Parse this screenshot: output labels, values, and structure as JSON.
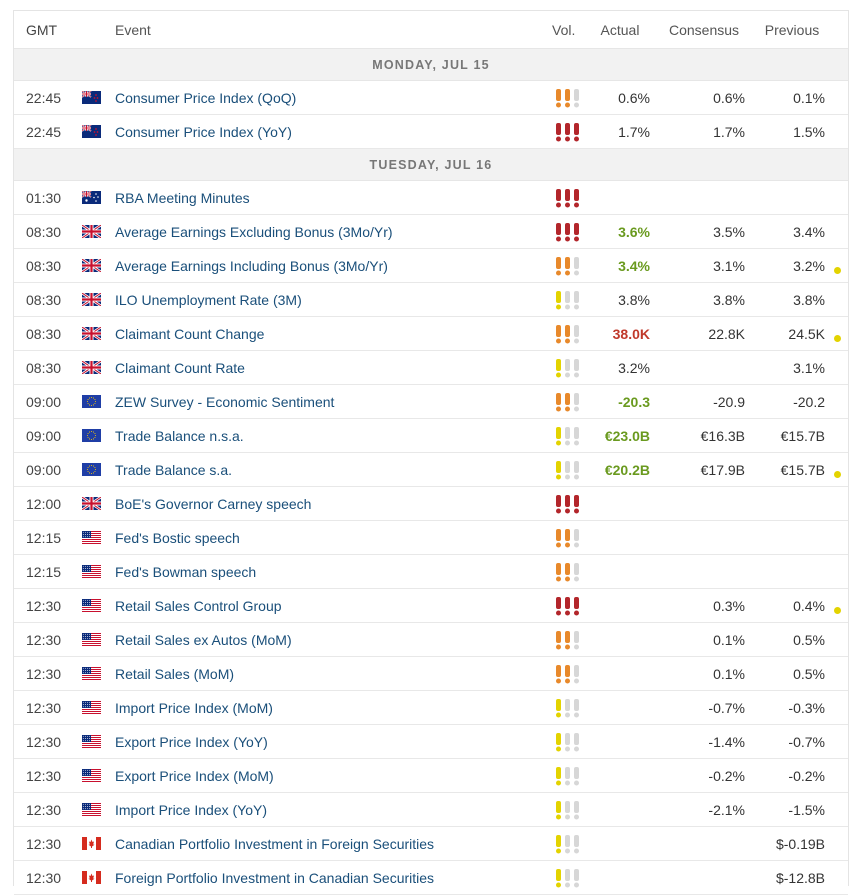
{
  "colors": {
    "link": "#1a4f7a",
    "positive": "#6a9a1f",
    "negative": "#c0392b",
    "vol_high": "#b3262b",
    "vol_medium": "#e8892b",
    "vol_low": "#e3d300",
    "vol_inactive": "#d7d7d7",
    "revision_dot": "#e3d300"
  },
  "header": {
    "gmt": "GMT",
    "event": "Event",
    "vol": "Vol.",
    "actual": "Actual",
    "consensus": "Consensus",
    "previous": "Previous"
  },
  "days": [
    "MONDAY, JUL 15",
    "TUESDAY, JUL 16"
  ],
  "rows": [
    {
      "kind": "day",
      "day_index": 0
    },
    {
      "kind": "event",
      "time": "22:45",
      "flag": "NZ",
      "event": "Consumer Price Index (QoQ)",
      "vol": "medium",
      "actual": "0.6%",
      "actual_style": "",
      "consensus": "0.6%",
      "previous": "0.1%",
      "revised": false
    },
    {
      "kind": "event",
      "time": "22:45",
      "flag": "NZ",
      "event": "Consumer Price Index (YoY)",
      "vol": "high",
      "actual": "1.7%",
      "actual_style": "",
      "consensus": "1.7%",
      "previous": "1.5%",
      "revised": false
    },
    {
      "kind": "day",
      "day_index": 1
    },
    {
      "kind": "event",
      "time": "01:30",
      "flag": "AU",
      "event": "RBA Meeting Minutes",
      "vol": "high",
      "actual": "",
      "actual_style": "",
      "consensus": "",
      "previous": "",
      "revised": false
    },
    {
      "kind": "event",
      "time": "08:30",
      "flag": "UK",
      "event": "Average Earnings Excluding Bonus (3Mo/Yr)",
      "vol": "high",
      "actual": "3.6%",
      "actual_style": "pos",
      "consensus": "3.5%",
      "previous": "3.4%",
      "revised": false
    },
    {
      "kind": "event",
      "time": "08:30",
      "flag": "UK",
      "event": "Average Earnings Including Bonus (3Mo/Yr)",
      "vol": "medium",
      "actual": "3.4%",
      "actual_style": "pos",
      "consensus": "3.1%",
      "previous": "3.2%",
      "revised": true
    },
    {
      "kind": "event",
      "time": "08:30",
      "flag": "UK",
      "event": "ILO Unemployment Rate (3M)",
      "vol": "low",
      "actual": "3.8%",
      "actual_style": "",
      "consensus": "3.8%",
      "previous": "3.8%",
      "revised": false
    },
    {
      "kind": "event",
      "time": "08:30",
      "flag": "UK",
      "event": "Claimant Count Change",
      "vol": "medium",
      "actual": "38.0K",
      "actual_style": "neg",
      "consensus": "22.8K",
      "previous": "24.5K",
      "revised": true
    },
    {
      "kind": "event",
      "time": "08:30",
      "flag": "UK",
      "event": "Claimant Count Rate",
      "vol": "low",
      "actual": "3.2%",
      "actual_style": "",
      "consensus": "",
      "previous": "3.1%",
      "revised": false
    },
    {
      "kind": "event",
      "time": "09:00",
      "flag": "EU",
      "event": "ZEW Survey - Economic Sentiment",
      "vol": "medium",
      "actual": "-20.3",
      "actual_style": "pos",
      "consensus": "-20.9",
      "previous": "-20.2",
      "revised": false
    },
    {
      "kind": "event",
      "time": "09:00",
      "flag": "EU",
      "event": "Trade Balance n.s.a.",
      "vol": "low",
      "actual": "€23.0B",
      "actual_style": "pos",
      "consensus": "€16.3B",
      "previous": "€15.7B",
      "revised": false
    },
    {
      "kind": "event",
      "time": "09:00",
      "flag": "EU",
      "event": "Trade Balance s.a.",
      "vol": "low",
      "actual": "€20.2B",
      "actual_style": "pos",
      "consensus": "€17.9B",
      "previous": "€15.7B",
      "revised": true
    },
    {
      "kind": "event",
      "time": "12:00",
      "flag": "UK",
      "event": "BoE's Governor Carney speech",
      "vol": "high",
      "actual": "",
      "actual_style": "",
      "consensus": "",
      "previous": "",
      "revised": false
    },
    {
      "kind": "event",
      "time": "12:15",
      "flag": "US",
      "event": "Fed's Bostic speech",
      "vol": "medium",
      "actual": "",
      "actual_style": "",
      "consensus": "",
      "previous": "",
      "revised": false
    },
    {
      "kind": "event",
      "time": "12:15",
      "flag": "US",
      "event": "Fed's Bowman speech",
      "vol": "medium",
      "actual": "",
      "actual_style": "",
      "consensus": "",
      "previous": "",
      "revised": false
    },
    {
      "kind": "event",
      "time": "12:30",
      "flag": "US",
      "event": "Retail Sales Control Group",
      "vol": "high",
      "actual": "",
      "actual_style": "",
      "consensus": "0.3%",
      "previous": "0.4%",
      "revised": true
    },
    {
      "kind": "event",
      "time": "12:30",
      "flag": "US",
      "event": "Retail Sales ex Autos (MoM)",
      "vol": "medium",
      "actual": "",
      "actual_style": "",
      "consensus": "0.1%",
      "previous": "0.5%",
      "revised": false
    },
    {
      "kind": "event",
      "time": "12:30",
      "flag": "US",
      "event": "Retail Sales (MoM)",
      "vol": "medium",
      "actual": "",
      "actual_style": "",
      "consensus": "0.1%",
      "previous": "0.5%",
      "revised": false
    },
    {
      "kind": "event",
      "time": "12:30",
      "flag": "US",
      "event": "Import Price Index (MoM)",
      "vol": "low",
      "actual": "",
      "actual_style": "",
      "consensus": "-0.7%",
      "previous": "-0.3%",
      "revised": false
    },
    {
      "kind": "event",
      "time": "12:30",
      "flag": "US",
      "event": "Export Price Index (YoY)",
      "vol": "low",
      "actual": "",
      "actual_style": "",
      "consensus": "-1.4%",
      "previous": "-0.7%",
      "revised": false
    },
    {
      "kind": "event",
      "time": "12:30",
      "flag": "US",
      "event": "Export Price Index (MoM)",
      "vol": "low",
      "actual": "",
      "actual_style": "",
      "consensus": "-0.2%",
      "previous": "-0.2%",
      "revised": false
    },
    {
      "kind": "event",
      "time": "12:30",
      "flag": "US",
      "event": "Import Price Index (YoY)",
      "vol": "low",
      "actual": "",
      "actual_style": "",
      "consensus": "-2.1%",
      "previous": "-1.5%",
      "revised": false
    },
    {
      "kind": "event",
      "time": "12:30",
      "flag": "CA",
      "event": "Canadian Portfolio Investment in Foreign Securities",
      "vol": "low",
      "actual": "",
      "actual_style": "",
      "consensus": "",
      "previous": "$-0.19B",
      "revised": false
    },
    {
      "kind": "event",
      "time": "12:30",
      "flag": "CA",
      "event": "Foreign Portfolio Investment in Canadian Securities",
      "vol": "low",
      "actual": "",
      "actual_style": "",
      "consensus": "",
      "previous": "$-12.8B",
      "revised": false
    }
  ]
}
